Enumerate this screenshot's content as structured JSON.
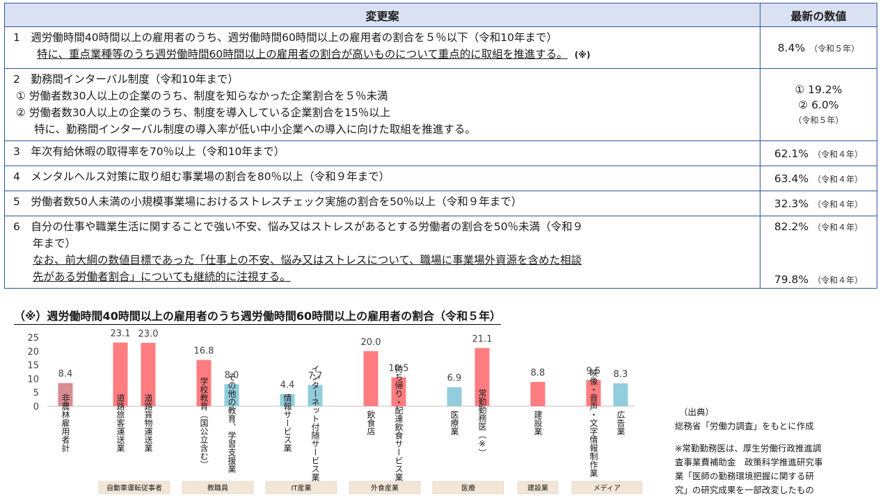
{
  "table": {
    "header_proposal": "変更案",
    "header_latest": "最新の数値",
    "rows": [
      {
        "line1": "1　週労働時間40時間以上の雇用者のうち、週労働時間60時間以上の雇用者の割合を５％以下（令和10年まで）",
        "line2": "特に、重点業種等のうち週労働時間60時間以上の雇用者の割合が高いものについて重点的に取組を推進する。",
        "note_mark": "(※)",
        "value": "8.4%",
        "value_year": "（令和５年）"
      },
      {
        "line1": "2　勤務間インターバル制度（令和10年まで）",
        "line2": "① 労働者数30人以上の企業のうち、制度を知らなかった企業割合を５％未満",
        "line3": "② 労働者数30人以上の企業のうち、制度を導入している企業割合を15％以上",
        "line4": "特に、勤務間インターバル制度の導入率が低い中小企業への導入に向けた取組を推進する。",
        "value_a": "① 19.2%",
        "value_b": "② 6.0%",
        "value_year": "（令和５年）"
      },
      {
        "line1": "3　年次有給休暇の取得率を70％以上（令和10年まで）",
        "value": "62.1%",
        "value_year": "（令和４年）"
      },
      {
        "line1": "4　メンタルヘルス対策に取り組む事業場の割合を80％以上（令和９年まで）",
        "value": "63.4%",
        "value_year": "（令和４年）"
      },
      {
        "line1": "5　労働者数50人未満の小規模事業場におけるストレスチェック実施の割合を50％以上（令和９年まで）",
        "value": "32.3%",
        "value_year": "（令和４年）"
      },
      {
        "line1": "6　自分の仕事や職業生活に関することで強い不安、悩み又はストレスがあるとする労働者の割合を50％未満（令和９",
        "line2": "年まで）",
        "line3": "なお、前大綱の数値目標であった「仕事上の不安、悩み又はストレスについて、職場に事業場外資源を含めた相談",
        "line4": "先がある労働者割合」についても継続的に注視する。",
        "value": "82.2%",
        "value_year": "（令和４年）",
        "value2": "79.8%",
        "value2_year": "（令和４年）"
      }
    ]
  },
  "chart_title": "（※）週労働時間40時間以上の雇用者のうち週労働時間60時間以上の雇用者の割合（令和５年）",
  "chart_data": {
    "type": "bar",
    "title": "（※）週労働時間40時間以上の雇用者のうち週労働時間60時間以上の雇用者の割合（令和５年）",
    "ylim": [
      0,
      25
    ],
    "yticks": [
      "0",
      "5",
      "10",
      "15",
      "20",
      "25"
    ],
    "grid": false,
    "categories": [
      "非農林雇用者計",
      "道路旅客運送業",
      "道路貨物運送業",
      "学校教育（国公立含む）",
      "その他の教育、学習支援業",
      "情報サービス業",
      "インターネット付随サービス業",
      "飲食店",
      "持ち帰り・配達飲食サービス業",
      "医療業",
      "常勤勤務医（※）",
      "建設業",
      "映像・音声・文字情報制作業",
      "広告業"
    ],
    "values": [
      8.4,
      23.1,
      23.0,
      16.8,
      8.0,
      4.4,
      7.7,
      20.0,
      10.5,
      6.9,
      21.1,
      8.8,
      9.5,
      8.3
    ],
    "value_labels": [
      "8.4",
      "23.1",
      "23.0",
      "16.8",
      "8.0",
      "4.4",
      "7.7",
      "20.0",
      "10.5",
      "6.9",
      "21.1",
      "8.8",
      "9.5",
      "8.3"
    ],
    "bar_colors": [
      "#d98c93",
      "#ff7c80",
      "#ff7c80",
      "#ff7c80",
      "#92cddc",
      "#92cddc",
      "#92cddc",
      "#ff7c80",
      "#ff7c80",
      "#92cddc",
      "#ff7c80",
      "#ff7c80",
      "#ff7c80",
      "#92cddc"
    ],
    "groups": [
      {
        "label": "自動車運転従事者",
        "members": [
          1,
          2
        ]
      },
      {
        "label": "教職員",
        "members": [
          3,
          4
        ]
      },
      {
        "label": "IT産業",
        "members": [
          5,
          6
        ]
      },
      {
        "label": "外食産業",
        "members": [
          7,
          8
        ]
      },
      {
        "label": "医療",
        "members": [
          9,
          10
        ]
      },
      {
        "label": "建設業",
        "members": [
          11
        ]
      },
      {
        "label": "メディア",
        "members": [
          12,
          13
        ]
      }
    ]
  },
  "source": {
    "title": "（出典）",
    "line1": "総務省「労働力調査」をもとに作成",
    "note1": "※常勤勤務医は、厚生労働行政推進調",
    "note2": "査事業費補助金　政策科学推進研究事",
    "note3": "業「医師の勤務環境把握に関する研",
    "note4": "究」の研究成果を一部改変したもの"
  },
  "colors": {
    "table_border": "#2f5597",
    "header_bg": "#d9e1f2",
    "bar_red": "#ff7c80",
    "bar_blue": "#92cddc",
    "bar_total": "#d98c93",
    "group_box_bg": "#f2e6d6"
  }
}
